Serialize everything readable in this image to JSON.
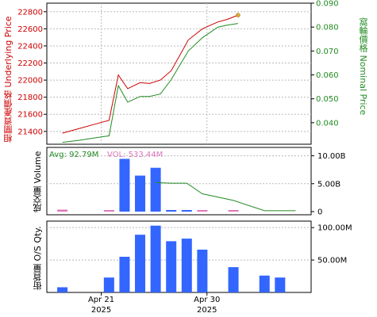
{
  "chart_data": [
    {
      "type": "line",
      "ylabel_left": "相關資產價格 Underlying Price",
      "ylabel_right": "窩輪價格 Nominal Price",
      "ylim_left": [
        21250,
        22900
      ],
      "ylim_right": [
        0.031,
        0.09
      ],
      "yticks_left": [
        "21400",
        "21600",
        "21800",
        "22000",
        "22200",
        "22400",
        "22600",
        "22800"
      ],
      "yticks_right": [
        "0.040",
        "0.050",
        "0.060",
        "0.070",
        "0.080",
        "0.090"
      ],
      "grid": true,
      "colors": {
        "underlying": "#cc0000",
        "nominal": "#228b22"
      },
      "series": [
        {
          "key": "underlying",
          "points": [
            [
              0,
              21380
            ],
            [
              1,
              21430
            ],
            [
              2,
              21480
            ],
            [
              3,
              21530
            ],
            [
              3.6,
              22060
            ],
            [
              4.2,
              21900
            ],
            [
              5,
              21970
            ],
            [
              5.6,
              21960
            ],
            [
              6.3,
              22000
            ],
            [
              7,
              22110
            ],
            [
              8.1,
              22470
            ],
            [
              9,
              22600
            ],
            [
              10,
              22680
            ],
            [
              10.6,
              22710
            ],
            [
              11.3,
              22760
            ]
          ]
        },
        {
          "key": "nominal",
          "points": [
            [
              0,
              0.0318
            ],
            [
              1,
              0.0326
            ],
            [
              2,
              0.0336
            ],
            [
              3,
              0.0345
            ],
            [
              3.6,
              0.0555
            ],
            [
              4.2,
              0.0486
            ],
            [
              5,
              0.051
            ],
            [
              5.6,
              0.051
            ],
            [
              6.3,
              0.052
            ],
            [
              7,
              0.058
            ],
            [
              8.1,
              0.07
            ],
            [
              9,
              0.0755
            ],
            [
              10,
              0.08
            ],
            [
              10.6,
              0.0808
            ],
            [
              11.3,
              0.0815
            ]
          ]
        }
      ]
    },
    {
      "type": "bar",
      "ylabel": "成交量 Volume",
      "legend_avg": "Avg: 92.79M",
      "legend_vol": "VOL: 533.44M",
      "ylim": [
        0,
        11.5
      ],
      "yticks": [
        "0",
        "5.00B",
        "10.00B"
      ],
      "ytick_values": [
        0,
        5,
        10
      ],
      "grid": true,
      "colors": {
        "bar": "#3366ff",
        "small": "#dd77bb",
        "avg": "#228b22"
      },
      "bars": [
        {
          "x": 0,
          "value": 0.35,
          "small": true
        },
        {
          "x": 3,
          "value": 0.08,
          "small": true
        },
        {
          "x": 4,
          "value": 9.45
        },
        {
          "x": 5,
          "value": 6.45
        },
        {
          "x": 6,
          "value": 7.85
        },
        {
          "x": 7,
          "value": 0.08
        },
        {
          "x": 8,
          "value": 0.08
        },
        {
          "x": 9,
          "value": 0.08,
          "small": true
        },
        {
          "x": 11,
          "value": 0.05,
          "small": true
        }
      ],
      "avg_line": [
        [
          6,
          5.2
        ],
        [
          7,
          5.1
        ],
        [
          8,
          5.1
        ],
        [
          9,
          3.2
        ],
        [
          11,
          2.0
        ],
        [
          13,
          0.15
        ],
        [
          15,
          0.15
        ]
      ]
    },
    {
      "type": "bar",
      "ylabel": "街貨量 O/S Qty.",
      "ylim": [
        0,
        110
      ],
      "yticks": [
        "50.00M",
        "100.00M"
      ],
      "ytick_values": [
        50,
        100
      ],
      "grid": true,
      "colors": {
        "bar": "#3366ff"
      },
      "bars": [
        {
          "x": 0,
          "value": 8
        },
        {
          "x": 3,
          "value": 23
        },
        {
          "x": 4,
          "value": 55
        },
        {
          "x": 5,
          "value": 89
        },
        {
          "x": 6,
          "value": 103
        },
        {
          "x": 7,
          "value": 79
        },
        {
          "x": 8,
          "value": 83
        },
        {
          "x": 9,
          "value": 66
        },
        {
          "x": 11,
          "value": 39
        },
        {
          "x": 13,
          "value": 26
        },
        {
          "x": 14,
          "value": 23
        }
      ]
    }
  ],
  "x_axis": {
    "ticks": [
      {
        "x": 2.5,
        "label": "Apr 21",
        "year": "2025"
      },
      {
        "x": 9.3,
        "label": "Apr 30",
        "year": "2025"
      }
    ]
  }
}
